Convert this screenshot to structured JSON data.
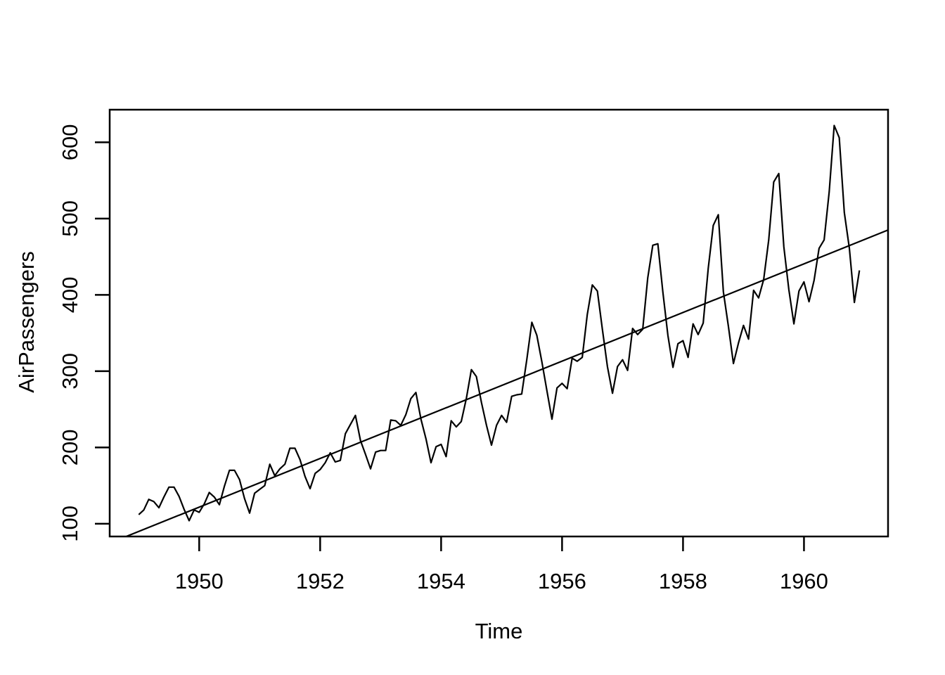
{
  "page": {
    "background": "#ffffff",
    "foreground": "#000000"
  },
  "chart_data": {
    "type": "line",
    "title": "",
    "xlabel": "Time",
    "ylabel": "AirPassengers",
    "x_ticks": [
      1950,
      1952,
      1954,
      1956,
      1958,
      1960
    ],
    "y_ticks": [
      100,
      200,
      300,
      400,
      500,
      600
    ],
    "xlim": [
      1948.52,
      1961.39
    ],
    "ylim": [
      83.3,
      642.7
    ],
    "grid": false,
    "legend_position": "none",
    "line_color": "#000000",
    "background_color": "#ffffff",
    "series": [
      {
        "name": "AirPassengers",
        "start_year": 1949,
        "frequency": 12,
        "values": [
          112,
          118,
          132,
          129,
          121,
          135,
          148,
          148,
          136,
          119,
          104,
          118,
          115,
          126,
          141,
          135,
          125,
          149,
          170,
          170,
          158,
          133,
          114,
          140,
          145,
          150,
          178,
          163,
          172,
          178,
          199,
          199,
          184,
          162,
          146,
          166,
          171,
          180,
          193,
          181,
          183,
          218,
          230,
          242,
          209,
          191,
          172,
          194,
          196,
          196,
          236,
          235,
          229,
          243,
          264,
          272,
          237,
          211,
          180,
          201,
          204,
          188,
          235,
          227,
          234,
          264,
          302,
          293,
          259,
          229,
          203,
          229,
          242,
          233,
          267,
          269,
          270,
          315,
          364,
          347,
          312,
          274,
          237,
          278,
          284,
          277,
          317,
          313,
          318,
          374,
          413,
          405,
          355,
          306,
          271,
          306,
          315,
          301,
          356,
          348,
          355,
          422,
          465,
          467,
          404,
          347,
          305,
          336,
          340,
          318,
          362,
          348,
          363,
          435,
          491,
          505,
          404,
          359,
          310,
          337,
          360,
          342,
          406,
          396,
          420,
          472,
          548,
          559,
          463,
          407,
          362,
          405,
          417,
          391,
          419,
          461,
          472,
          535,
          622,
          606,
          508,
          461,
          390,
          432
        ]
      }
    ],
    "trend_line": {
      "type": "linear-fit",
      "slope": 31.886,
      "intercept": -62055.907
    }
  }
}
